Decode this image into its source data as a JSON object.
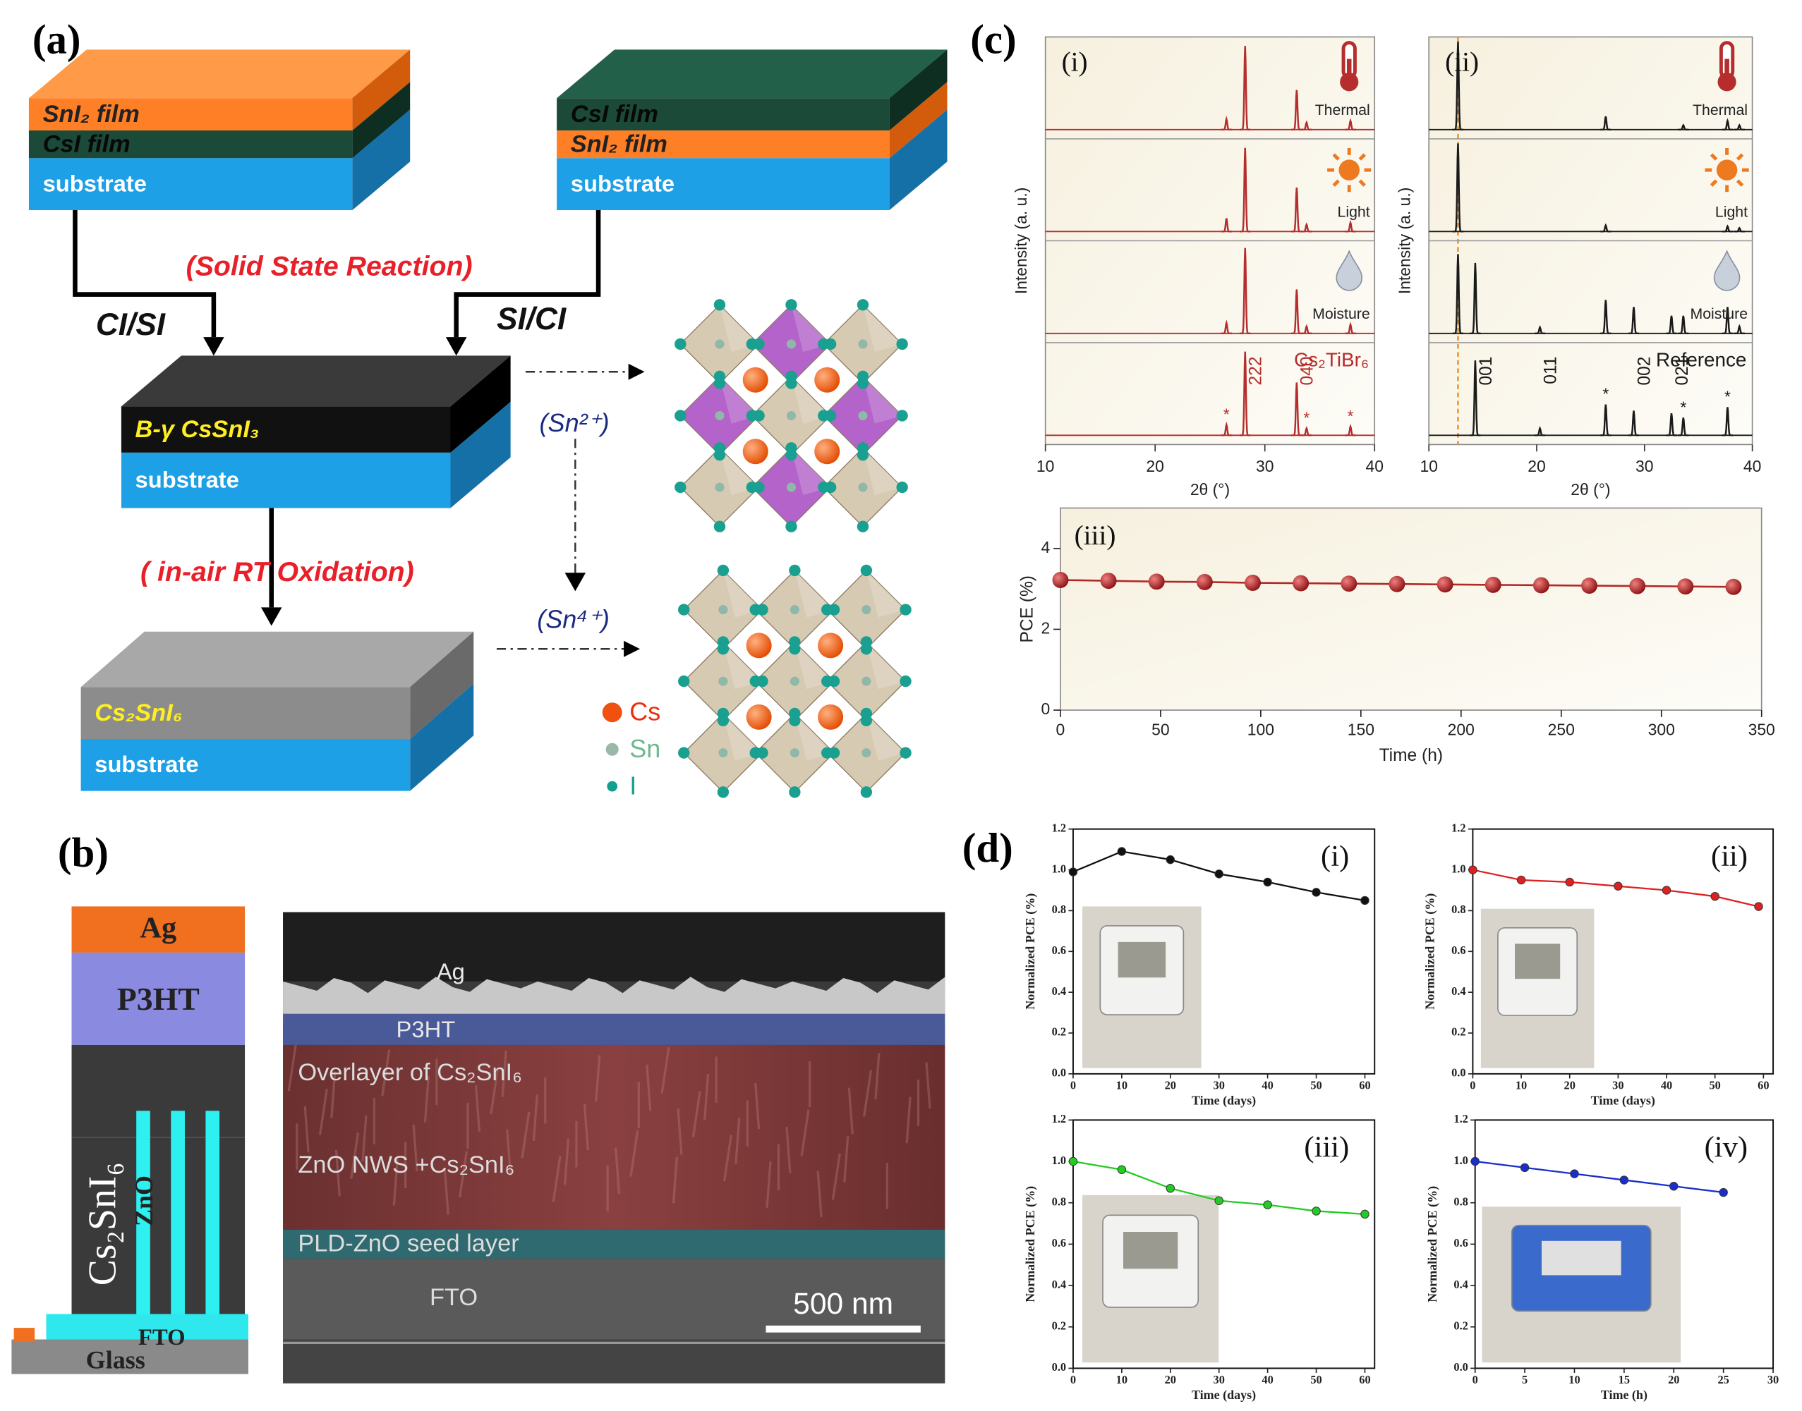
{
  "panel_a": {
    "label": "(a)",
    "slab1": [
      "SnI₂ film",
      "CsI film",
      "substrate"
    ],
    "slab2": [
      "CsI film",
      "SnI₂ film",
      "substrate"
    ],
    "reaction": "(Solid State Reaction)",
    "left_route": "CI/SI",
    "right_route": "SI/CI",
    "slab3": [
      "B-γ  CsSnI₃",
      "substrate"
    ],
    "oxidation": "( in-air RT  Oxidation)",
    "slab4": [
      "Cs₂SnI₆",
      "substrate"
    ],
    "sn2": "(Sn²⁺)",
    "sn4": "(Sn⁴⁺)",
    "legend": [
      "Cs",
      "Sn",
      "I"
    ]
  },
  "panel_b": {
    "label": "(b)",
    "stack": [
      "Ag",
      "P3HT",
      "Cs₂SnI₆",
      "ZnO",
      "FTO",
      "Glass"
    ],
    "sem": [
      "Ag",
      "P3HT",
      "Overlayer of Cs₂SnI₆",
      "ZnO NWS +Cs₂SnI₆",
      "PLD-ZnO seed layer",
      "FTO"
    ],
    "scale_bar": "500 nm"
  },
  "panel_c_label": "(c)",
  "panel_d_label": "(d)",
  "chart_data": [
    {
      "type": "xrd",
      "title": "(i)",
      "xlabel": "2θ (°)",
      "ylabel": "Intensity (a. u.)",
      "xlim": [
        10,
        40
      ],
      "xticks": [
        10,
        20,
        30,
        40
      ],
      "color": "#b52d2d",
      "series": [
        {
          "name": "Thermal",
          "x": [
            26.5,
            28.2,
            32.9,
            33.8,
            37.8
          ],
          "heights": [
            0.12,
            0.95,
            0.45,
            0.08,
            0.1
          ]
        },
        {
          "name": "Light",
          "x": [
            26.5,
            28.2,
            32.9,
            33.8,
            37.8
          ],
          "heights": [
            0.15,
            0.95,
            0.5,
            0.08,
            0.1
          ]
        },
        {
          "name": "Moisture",
          "x": [
            26.5,
            28.2,
            32.9,
            33.8,
            37.8
          ],
          "heights": [
            0.12,
            0.97,
            0.5,
            0.08,
            0.1
          ]
        },
        {
          "name": "Cs₂TiBr₆",
          "x": [
            26.5,
            28.2,
            32.9,
            33.8,
            37.8
          ],
          "heights": [
            0.12,
            0.95,
            0.6,
            0.08,
            0.1
          ]
        }
      ],
      "peak_labels": [
        {
          "x": 28.2,
          "label": "222"
        },
        {
          "x": 32.9,
          "label": "040"
        }
      ],
      "star_label": "*",
      "star_x": [
        26.5,
        33.8,
        37.8
      ]
    },
    {
      "type": "xrd",
      "title": "(ii)",
      "xlabel": "2θ (°)",
      "ylabel": "Intensity (a. u.)",
      "xlim": [
        10,
        40
      ],
      "xticks": [
        10,
        20,
        30,
        40
      ],
      "color": "#1a1a1a",
      "marker_line": 12.7,
      "series": [
        {
          "name": "Thermal",
          "x": [
            12.7,
            26.4,
            33.6,
            37.7,
            38.8
          ],
          "heights": [
            1.0,
            0.15,
            0.05,
            0.1,
            0.05
          ]
        },
        {
          "name": "Light",
          "x": [
            12.7,
            26.4,
            37.7,
            38.8
          ],
          "heights": [
            1.0,
            0.07,
            0.06,
            0.04
          ]
        },
        {
          "name": "Moisture",
          "x": [
            12.7,
            14.3,
            20.3,
            26.4,
            29.0,
            32.5,
            33.6,
            37.7,
            38.8
          ],
          "heights": [
            0.9,
            0.8,
            0.07,
            0.38,
            0.3,
            0.2,
            0.2,
            0.3,
            0.08
          ]
        },
        {
          "name": "Reference",
          "x": [
            14.3,
            20.3,
            26.4,
            29.0,
            32.5,
            33.6,
            37.7
          ],
          "heights": [
            0.85,
            0.08,
            0.35,
            0.28,
            0.25,
            0.2,
            0.32
          ]
        }
      ],
      "peak_labels": [
        {
          "x": 14.3,
          "label": "001"
        },
        {
          "x": 20.3,
          "label": "011"
        },
        {
          "x": 29.0,
          "label": "002"
        },
        {
          "x": 32.5,
          "label": "021"
        }
      ],
      "star_label": "*",
      "star_x": [
        26.4,
        33.6,
        37.7
      ]
    },
    {
      "type": "line",
      "title": "(iii)",
      "xlabel": "Time (h)",
      "ylabel": "PCE (%)",
      "xlim": [
        0,
        350
      ],
      "xticks": [
        0,
        50,
        100,
        150,
        200,
        250,
        300,
        350
      ],
      "ylim": [
        0,
        5
      ],
      "yticks": [
        0,
        2,
        4
      ],
      "x": [
        0,
        24,
        48,
        72,
        96,
        120,
        144,
        168,
        192,
        216,
        240,
        264,
        288,
        312,
        336
      ],
      "series": [
        {
          "color": "#b02a2a",
          "values": [
            3.22,
            3.2,
            3.18,
            3.17,
            3.15,
            3.14,
            3.13,
            3.12,
            3.11,
            3.1,
            3.09,
            3.08,
            3.07,
            3.06,
            3.05
          ]
        }
      ]
    },
    {
      "type": "line",
      "title": "(i)",
      "xlabel": "Time (days)",
      "ylabel": "Normalized PCE (%)",
      "xlim": [
        0,
        62
      ],
      "xticks": [
        0,
        10,
        20,
        30,
        40,
        50,
        60
      ],
      "ylim": [
        0,
        1.2
      ],
      "yticks": [
        {
          "value": 0,
          "label": "0.0"
        },
        0.2,
        0.4,
        0.6,
        0.8,
        {
          "value": 1,
          "label": "1.0"
        },
        1.2
      ],
      "x": [
        0,
        10,
        20,
        30,
        40,
        50,
        60
      ],
      "series": [
        {
          "color": "#111111",
          "values": [
            0.99,
            1.09,
            1.05,
            0.98,
            0.94,
            0.89,
            0.85
          ]
        }
      ]
    },
    {
      "type": "line",
      "title": "(ii)",
      "xlabel": "Time (days)",
      "ylabel": "Normalized PCE (%)",
      "xlim": [
        0,
        62
      ],
      "xticks": [
        0,
        10,
        20,
        30,
        40,
        50,
        60
      ],
      "ylim": [
        0,
        1.2
      ],
      "yticks": [
        {
          "value": 0,
          "label": "0.0"
        },
        0.2,
        0.4,
        0.6,
        0.8,
        {
          "value": 1,
          "label": "1.0"
        },
        1.2
      ],
      "x": [
        0,
        10,
        20,
        30,
        40,
        50,
        59
      ],
      "series": [
        {
          "color": "#e02020",
          "values": [
            1.0,
            0.95,
            0.94,
            0.92,
            0.9,
            0.87,
            0.82
          ]
        }
      ]
    },
    {
      "type": "line",
      "title": "(iii)",
      "xlabel": "Time (days)",
      "ylabel": "Normalized PCE (%)",
      "xlim": [
        0,
        62
      ],
      "xticks": [
        0,
        10,
        20,
        30,
        40,
        50,
        60
      ],
      "ylim": [
        0,
        1.2
      ],
      "yticks": [
        {
          "value": 0,
          "label": "0.0"
        },
        0.2,
        0.4,
        0.6,
        0.8,
        {
          "value": 1,
          "label": "1.0"
        },
        1.2
      ],
      "x": [
        0,
        10,
        20,
        30,
        40,
        50,
        60
      ],
      "series": [
        {
          "color": "#22cc22",
          "values": [
            1.0,
            0.96,
            0.87,
            0.81,
            0.79,
            0.76,
            0.745
          ]
        }
      ]
    },
    {
      "type": "line",
      "title": "(iv)",
      "xlabel": "Time (h)",
      "ylabel": "Normalized PCE (%)",
      "xlim": [
        0,
        30
      ],
      "xticks": [
        0,
        5,
        10,
        15,
        20,
        25,
        30
      ],
      "ylim": [
        0,
        1.2
      ],
      "yticks": [
        {
          "value": 0,
          "label": "0.0"
        },
        0.2,
        0.4,
        0.6,
        0.8,
        {
          "value": 1,
          "label": "1.0"
        },
        1.2
      ],
      "x": [
        0,
        5,
        10,
        15,
        20,
        25
      ],
      "series": [
        {
          "color": "#1a2ecc",
          "values": [
            1.0,
            0.97,
            0.94,
            0.91,
            0.88,
            0.85
          ]
        }
      ]
    }
  ]
}
